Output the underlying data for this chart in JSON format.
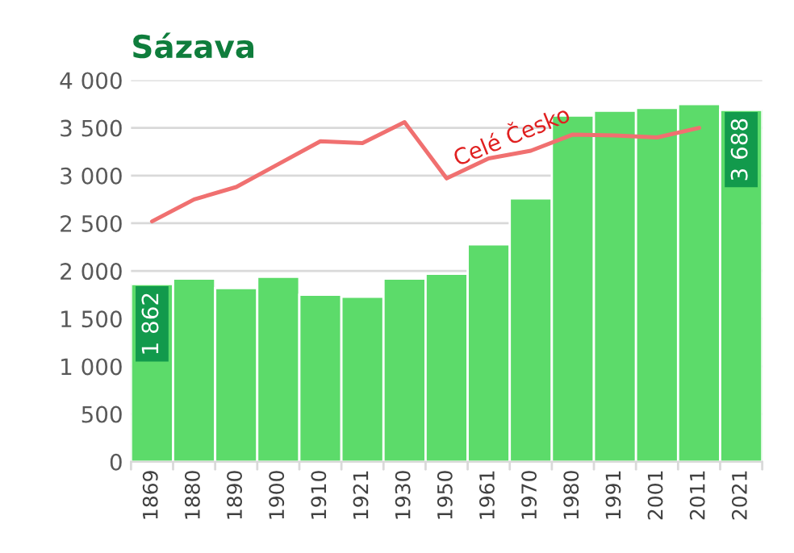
{
  "chart_data": {
    "type": "bar",
    "title": "Sázava",
    "categories": [
      "1869",
      "1880",
      "1890",
      "1900",
      "1910",
      "1921",
      "1930",
      "1950",
      "1961",
      "1970",
      "1980",
      "1991",
      "2001",
      "2011",
      "2021"
    ],
    "series": [
      {
        "color": "#5cdb6a",
        "values": [
          1862,
          1920,
          1820,
          1940,
          1750,
          1730,
          1920,
          1970,
          2280,
          2760,
          3630,
          3680,
          3710,
          3750,
          3688
        ],
        "value_labels": [
          "1 862",
          null,
          null,
          null,
          null,
          null,
          null,
          null,
          null,
          null,
          null,
          null,
          null,
          null,
          "3 688"
        ]
      },
      {
        "type": "line",
        "name": "Celé Česko",
        "color": "#f07070",
        "values": [
          2520,
          2750,
          2880,
          3120,
          3360,
          3340,
          3560,
          2970,
          3180,
          3260,
          3430,
          3420,
          3400,
          3500,
          null
        ]
      }
    ],
    "ylim": [
      0,
      4000
    ],
    "yticks": [
      {
        "value": 0,
        "label": "0"
      },
      {
        "value": 500,
        "label": "500"
      },
      {
        "value": 1000,
        "label": "1 000"
      },
      {
        "value": 1500,
        "label": "1 500"
      },
      {
        "value": 2000,
        "label": "2 000"
      },
      {
        "value": 2500,
        "label": "2 500"
      },
      {
        "value": 3000,
        "label": "3 000"
      },
      {
        "value": 3500,
        "label": "3 500"
      },
      {
        "value": 4000,
        "label": "4 000"
      }
    ],
    "grid": "y",
    "legend": false
  }
}
